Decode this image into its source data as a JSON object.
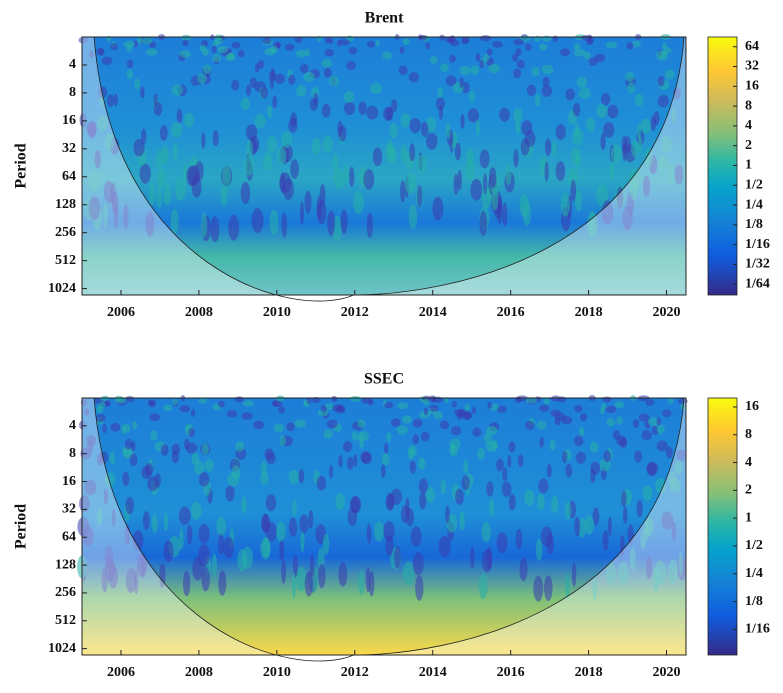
{
  "chart_data": [
    {
      "type": "wavelet",
      "title": "Brent",
      "ylabel": "Period",
      "colormap": "parula",
      "xlim": [
        2005,
        2020.5
      ],
      "xticks": [
        2006,
        2008,
        2010,
        2012,
        2014,
        2016,
        2018,
        2020
      ],
      "ylim": [
        2,
        1200
      ],
      "ylog": true,
      "yreverse": true,
      "yticks": [
        4,
        8,
        16,
        32,
        64,
        128,
        256,
        512,
        1024
      ],
      "clim": [
        0.0107,
        90
      ],
      "cticks": [
        64,
        32,
        16,
        8,
        4,
        2,
        1,
        {
          "value": 0.5,
          "label": "1/2"
        },
        {
          "value": 0.25,
          "label": "1/4"
        },
        {
          "value": 0.125,
          "label": "1/8"
        },
        {
          "value": 0.0625,
          "label": "1/16"
        },
        {
          "value": 0.03125,
          "label": "1/32"
        },
        {
          "value": 0.015625,
          "label": "1/64"
        }
      ]
    },
    {
      "type": "wavelet",
      "title": "SSEC",
      "ylabel": "Period",
      "colormap": "parula",
      "xlim": [
        2005,
        2020.5
      ],
      "xticks": [
        2006,
        2008,
        2010,
        2012,
        2014,
        2016,
        2018,
        2020
      ],
      "ylim": [
        2,
        1200
      ],
      "ylog": true,
      "yreverse": true,
      "yticks": [
        4,
        8,
        16,
        32,
        64,
        128,
        256,
        512,
        1024
      ],
      "clim": [
        0.033,
        20
      ],
      "cticks": [
        16,
        8,
        4,
        2,
        1,
        {
          "value": 0.5,
          "label": "1/2"
        },
        {
          "value": 0.25,
          "label": "1/4"
        },
        {
          "value": 0.125,
          "label": "1/8"
        },
        {
          "value": 0.0625,
          "label": "1/16"
        }
      ]
    }
  ]
}
